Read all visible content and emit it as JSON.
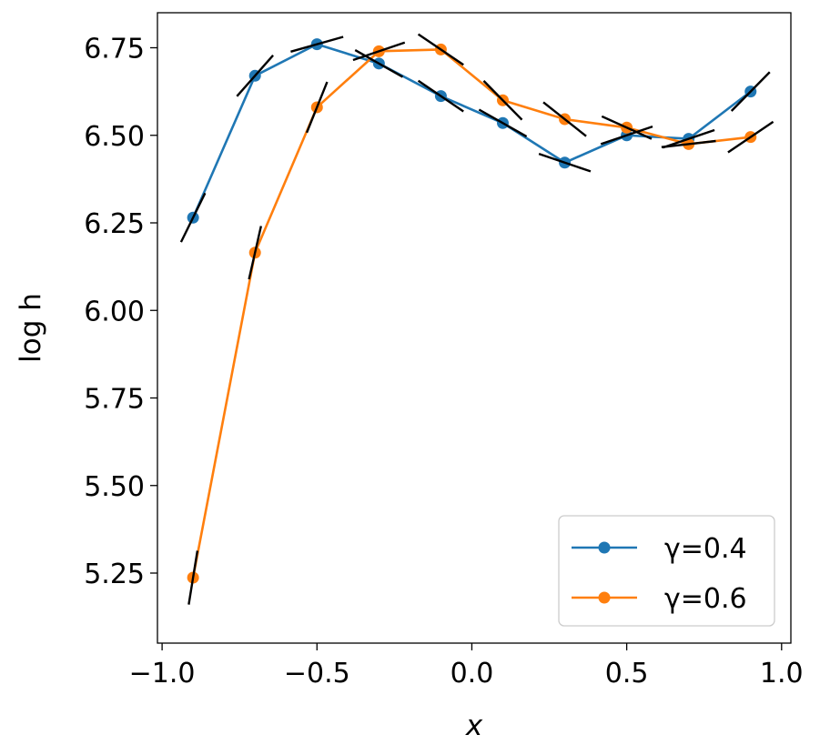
{
  "chart_data": {
    "type": "line",
    "title": "",
    "xlabel": "x",
    "ylabel": "log h",
    "xlim": [
      -1.0,
      1.0
    ],
    "ylim": [
      5.05,
      6.85
    ],
    "grid": false,
    "legend_position": "lower-right",
    "x_ticks": [
      -1.0,
      -0.5,
      0.0,
      0.5,
      1.0
    ],
    "x_tick_labels": [
      "−1.0",
      "−0.5",
      "0.0",
      "0.5",
      "1.0"
    ],
    "y_ticks": [
      5.25,
      5.5,
      5.75,
      6.0,
      6.25,
      6.5,
      6.75
    ],
    "y_tick_labels": [
      "5.25",
      "5.50",
      "5.75",
      "6.00",
      "6.25",
      "6.50",
      "6.75"
    ],
    "x": [
      -0.9,
      -0.7,
      -0.5,
      -0.3,
      -0.1,
      0.1,
      0.3,
      0.5,
      0.7,
      0.9
    ],
    "series": [
      {
        "name": "γ=0.4",
        "color": "#1f77b4",
        "values": [
          6.265,
          6.67,
          6.76,
          6.705,
          6.612,
          6.535,
          6.422,
          6.5,
          6.49,
          6.625
        ],
        "slopes": [
          1.8,
          1.0,
          0.25,
          -0.5,
          -0.6,
          -0.5,
          -0.3,
          0.3,
          0.3,
          0.9
        ]
      },
      {
        "name": "γ=0.6",
        "color": "#ff7f0e",
        "values": [
          5.237,
          6.165,
          6.58,
          6.74,
          6.745,
          6.6,
          6.546,
          6.522,
          6.475,
          6.495
        ],
        "slopes": [
          5.5,
          3.9,
          2.2,
          0.3,
          -0.6,
          -0.9,
          -0.7,
          -0.4,
          0.1,
          0.6
        ]
      }
    ],
    "tangent_color": "#000000"
  }
}
